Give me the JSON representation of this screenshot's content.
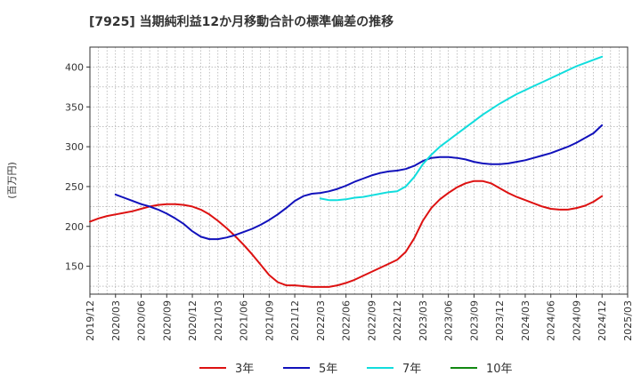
{
  "chart_data": {
    "type": "line",
    "title": "[7925]  当期純利益12か月移動合計の標準偏差の推移",
    "ylabel": "(百万円)",
    "xlabel": "",
    "ylim": [
      115,
      425
    ],
    "xlim": [
      "2019/12",
      "2025/03"
    ],
    "yticks": [
      150,
      200,
      250,
      300,
      350,
      400
    ],
    "xticks": [
      "2019/12",
      "2020/03",
      "2020/06",
      "2020/09",
      "2020/12",
      "2021/03",
      "2021/06",
      "2021/09",
      "2021/12",
      "2022/03",
      "2022/06",
      "2022/09",
      "2022/12",
      "2023/03",
      "2023/06",
      "2023/09",
      "2023/12",
      "2024/03",
      "2024/06",
      "2024/09",
      "2024/12",
      "2025/03"
    ],
    "grid": true,
    "legend_position": "bottom",
    "series": [
      {
        "name": "3年",
        "color": "#dd1111",
        "points": [
          [
            "2019/12",
            206
          ],
          [
            "2020/01",
            210
          ],
          [
            "2020/02",
            213
          ],
          [
            "2020/03",
            215
          ],
          [
            "2020/04",
            217
          ],
          [
            "2020/05",
            219
          ],
          [
            "2020/06",
            222
          ],
          [
            "2020/07",
            225
          ],
          [
            "2020/08",
            227
          ],
          [
            "2020/09",
            228
          ],
          [
            "2020/10",
            228
          ],
          [
            "2020/11",
            227
          ],
          [
            "2020/12",
            225
          ],
          [
            "2021/01",
            221
          ],
          [
            "2021/02",
            215
          ],
          [
            "2021/03",
            207
          ],
          [
            "2021/04",
            198
          ],
          [
            "2021/05",
            188
          ],
          [
            "2021/06",
            177
          ],
          [
            "2021/07",
            165
          ],
          [
            "2021/08",
            152
          ],
          [
            "2021/09",
            139
          ],
          [
            "2021/10",
            130
          ],
          [
            "2021/11",
            126
          ],
          [
            "2021/12",
            126
          ],
          [
            "2022/01",
            125
          ],
          [
            "2022/02",
            124
          ],
          [
            "2022/03",
            124
          ],
          [
            "2022/04",
            124
          ],
          [
            "2022/05",
            126
          ],
          [
            "2022/06",
            129
          ],
          [
            "2022/07",
            133
          ],
          [
            "2022/08",
            138
          ],
          [
            "2022/09",
            143
          ],
          [
            "2022/10",
            148
          ],
          [
            "2022/11",
            153
          ],
          [
            "2022/12",
            158
          ],
          [
            "2023/01",
            168
          ],
          [
            "2023/02",
            185
          ],
          [
            "2023/03",
            207
          ],
          [
            "2023/04",
            223
          ],
          [
            "2023/05",
            234
          ],
          [
            "2023/06",
            242
          ],
          [
            "2023/07",
            249
          ],
          [
            "2023/08",
            254
          ],
          [
            "2023/09",
            257
          ],
          [
            "2023/10",
            257
          ],
          [
            "2023/11",
            254
          ],
          [
            "2023/12",
            248
          ],
          [
            "2024/01",
            242
          ],
          [
            "2024/02",
            237
          ],
          [
            "2024/03",
            233
          ],
          [
            "2024/04",
            229
          ],
          [
            "2024/05",
            225
          ],
          [
            "2024/06",
            222
          ],
          [
            "2024/07",
            221
          ],
          [
            "2024/08",
            221
          ],
          [
            "2024/09",
            223
          ],
          [
            "2024/10",
            226
          ],
          [
            "2024/11",
            231
          ],
          [
            "2024/12",
            238
          ]
        ]
      },
      {
        "name": "5年",
        "color": "#1111bb",
        "points": [
          [
            "2020/03",
            240
          ],
          [
            "2020/04",
            236
          ],
          [
            "2020/05",
            232
          ],
          [
            "2020/06",
            228
          ],
          [
            "2020/07",
            225
          ],
          [
            "2020/08",
            221
          ],
          [
            "2020/09",
            216
          ],
          [
            "2020/10",
            210
          ],
          [
            "2020/11",
            203
          ],
          [
            "2020/12",
            194
          ],
          [
            "2021/01",
            187
          ],
          [
            "2021/02",
            184
          ],
          [
            "2021/03",
            184
          ],
          [
            "2021/04",
            186
          ],
          [
            "2021/05",
            189
          ],
          [
            "2021/06",
            193
          ],
          [
            "2021/07",
            197
          ],
          [
            "2021/08",
            202
          ],
          [
            "2021/09",
            208
          ],
          [
            "2021/10",
            215
          ],
          [
            "2021/11",
            223
          ],
          [
            "2021/12",
            232
          ],
          [
            "2022/01",
            238
          ],
          [
            "2022/02",
            241
          ],
          [
            "2022/03",
            242
          ],
          [
            "2022/04",
            244
          ],
          [
            "2022/05",
            247
          ],
          [
            "2022/06",
            251
          ],
          [
            "2022/07",
            256
          ],
          [
            "2022/08",
            260
          ],
          [
            "2022/09",
            264
          ],
          [
            "2022/10",
            267
          ],
          [
            "2022/11",
            269
          ],
          [
            "2022/12",
            270
          ],
          [
            "2023/01",
            272
          ],
          [
            "2023/02",
            276
          ],
          [
            "2023/03",
            282
          ],
          [
            "2023/04",
            286
          ],
          [
            "2023/05",
            287
          ],
          [
            "2023/06",
            287
          ],
          [
            "2023/07",
            286
          ],
          [
            "2023/08",
            284
          ],
          [
            "2023/09",
            281
          ],
          [
            "2023/10",
            279
          ],
          [
            "2023/11",
            278
          ],
          [
            "2023/12",
            278
          ],
          [
            "2024/01",
            279
          ],
          [
            "2024/02",
            281
          ],
          [
            "2024/03",
            283
          ],
          [
            "2024/04",
            286
          ],
          [
            "2024/05",
            289
          ],
          [
            "2024/06",
            292
          ],
          [
            "2024/07",
            296
          ],
          [
            "2024/08",
            300
          ],
          [
            "2024/09",
            305
          ],
          [
            "2024/10",
            311
          ],
          [
            "2024/11",
            317
          ],
          [
            "2024/12",
            327
          ]
        ]
      },
      {
        "name": "7年",
        "color": "#11dddd",
        "points": [
          [
            "2022/03",
            235
          ],
          [
            "2022/04",
            233
          ],
          [
            "2022/05",
            233
          ],
          [
            "2022/06",
            234
          ],
          [
            "2022/07",
            236
          ],
          [
            "2022/08",
            237
          ],
          [
            "2022/09",
            239
          ],
          [
            "2022/10",
            241
          ],
          [
            "2022/11",
            243
          ],
          [
            "2022/12",
            244
          ],
          [
            "2023/01",
            250
          ],
          [
            "2023/02",
            262
          ],
          [
            "2023/03",
            278
          ],
          [
            "2023/04",
            290
          ],
          [
            "2023/05",
            300
          ],
          [
            "2023/06",
            308
          ],
          [
            "2023/07",
            316
          ],
          [
            "2023/08",
            324
          ],
          [
            "2023/09",
            332
          ],
          [
            "2023/10",
            340
          ],
          [
            "2023/11",
            347
          ],
          [
            "2023/12",
            354
          ],
          [
            "2024/01",
            360
          ],
          [
            "2024/02",
            366
          ],
          [
            "2024/03",
            371
          ],
          [
            "2024/04",
            376
          ],
          [
            "2024/05",
            381
          ],
          [
            "2024/06",
            386
          ],
          [
            "2024/07",
            391
          ],
          [
            "2024/08",
            396
          ],
          [
            "2024/09",
            401
          ],
          [
            "2024/10",
            405
          ],
          [
            "2024/11",
            409
          ],
          [
            "2024/12",
            413
          ]
        ]
      },
      {
        "name": "10年",
        "color": "#118811",
        "points": []
      }
    ]
  }
}
